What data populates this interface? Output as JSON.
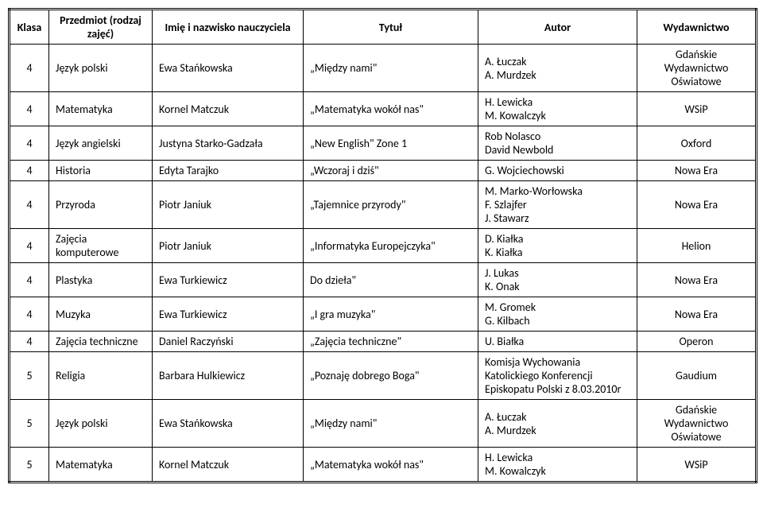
{
  "headers": {
    "klasa": "Klasa",
    "przedmiot": "Przedmiot (rodzaj zajęć)",
    "nauczyciel": "Imię i nazwisko nauczyciela",
    "tytul": "Tytuł",
    "autor": "Autor",
    "wydawnictwo": "Wydawnictwo"
  },
  "rows": [
    {
      "klasa": "4",
      "przedmiot": "Język polski",
      "nauczyciel": "Ewa Stańkowska",
      "tytul": "„Między nami\"",
      "autor": "A. Łuczak\nA. Murdzek",
      "wydawnictwo": "Gdańskie Wydawnictwo Oświatowe"
    },
    {
      "klasa": "4",
      "przedmiot": "Matematyka",
      "nauczyciel": "Kornel Matczuk",
      "tytul": "„Matematyka wokół nas\"",
      "autor": "H. Lewicka\nM. Kowalczyk",
      "wydawnictwo": "WSiP"
    },
    {
      "klasa": "4",
      "przedmiot": "Język angielski",
      "nauczyciel": "Justyna Starko-Gadzała",
      "tytul": "„New English\" Zone 1",
      "autor": "Rob Nolasco\nDavid Newbold",
      "wydawnictwo": "Oxford"
    },
    {
      "klasa": "4",
      "przedmiot": "Historia",
      "nauczyciel": "Edyta Tarajko",
      "tytul": "„Wczoraj i dziś\"",
      "autor": "G. Wojciechowski",
      "wydawnictwo": "Nowa Era"
    },
    {
      "klasa": "4",
      "przedmiot": "Przyroda",
      "nauczyciel": "Piotr Janiuk",
      "tytul": "„Tajemnice przyrody\"",
      "autor": "M. Marko-Worłowska\nF. Szlajfer\nJ. Stawarz",
      "wydawnictwo": "Nowa Era"
    },
    {
      "klasa": "4",
      "przedmiot": "Zajęcia komputerowe",
      "nauczyciel": "Piotr Janiuk",
      "tytul": "„Informatyka Europejczyka\"",
      "autor": "D. Kiałka\nK. Kiałka",
      "wydawnictwo": "Helion"
    },
    {
      "klasa": "4",
      "przedmiot": "Plastyka",
      "nauczyciel": "Ewa Turkiewicz",
      "tytul": "Do dzieła\"",
      "autor": "J. Lukas\nK. Onak",
      "wydawnictwo": "Nowa Era"
    },
    {
      "klasa": "4",
      "przedmiot": "Muzyka",
      "nauczyciel": "Ewa Turkiewicz",
      "tytul": "„I gra muzyka\"",
      "autor": "M. Gromek\nG. Kilbach",
      "wydawnictwo": "Nowa Era"
    },
    {
      "klasa": "4",
      "przedmiot": "Zajęcia techniczne",
      "nauczyciel": "Daniel Raczyński",
      "tytul": "„Zajęcia techniczne\"",
      "autor": "U. Białka",
      "wydawnictwo": "Operon"
    },
    {
      "klasa": "5",
      "przedmiot": "Religia",
      "nauczyciel": "Barbara Hulkiewicz",
      "tytul": "„Poznaję dobrego Boga\"",
      "autor": "Komisja Wychowania Katolickiego Konferencji Episkopatu Polski z 8.03.2010r",
      "wydawnictwo": "Gaudium"
    },
    {
      "klasa": "5",
      "przedmiot": "Język polski",
      "nauczyciel": "Ewa Stańkowska",
      "tytul": "„Między nami\"",
      "autor": "A. Łuczak\nA. Murdzek",
      "wydawnictwo": "Gdańskie Wydawnictwo Oświatowe"
    },
    {
      "klasa": "5",
      "przedmiot": "Matematyka",
      "nauczyciel": "Kornel Matczuk",
      "tytul": "„Matematyka wokół nas\"",
      "autor": "H. Lewicka\nM. Kowalczyk",
      "wydawnictwo": "WSiP"
    }
  ]
}
